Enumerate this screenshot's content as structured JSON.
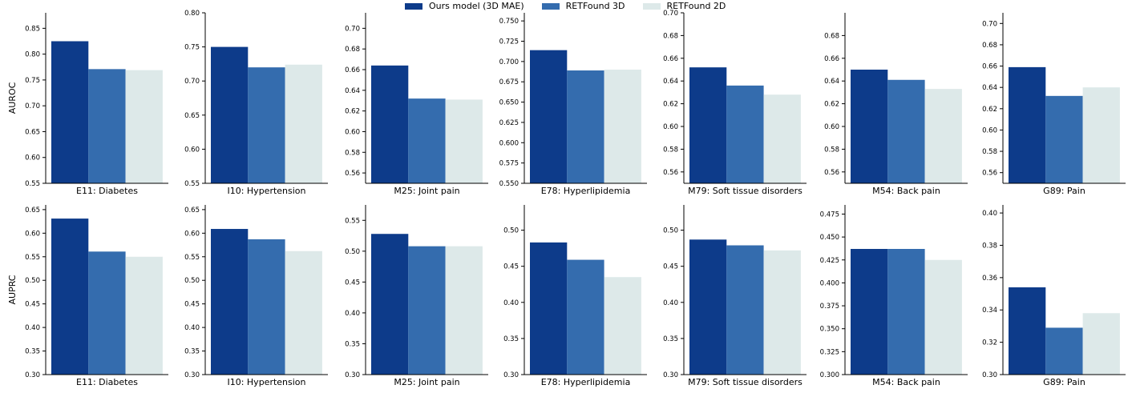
{
  "legend": [
    {
      "label": "Ours model (3D MAE)",
      "color": "#0d3b8a"
    },
    {
      "label": "RETFound 3D",
      "color": "#346cae"
    },
    {
      "label": "RETFound 2D",
      "color": "#dde9e9"
    }
  ],
  "chart_data": [
    {
      "type": "bar",
      "row_label": "AUROC",
      "xlabel": "E11: Diabetes",
      "ylim": [
        0.55,
        0.88
      ],
      "yticks": [
        "0.55",
        "0.60",
        "0.65",
        "0.70",
        "0.75",
        "0.80",
        "0.85"
      ],
      "series": [
        {
          "name": "Ours model (3D MAE)",
          "value": 0.825
        },
        {
          "name": "RETFound 3D",
          "value": 0.771
        },
        {
          "name": "RETFound 2D",
          "value": 0.769
        }
      ]
    },
    {
      "type": "bar",
      "row_label": "",
      "xlabel": "I10: Hypertension",
      "ylim": [
        0.55,
        0.8
      ],
      "yticks": [
        "0.55",
        "0.60",
        "0.65",
        "0.70",
        "0.75",
        "0.80"
      ],
      "series": [
        {
          "name": "Ours model (3D MAE)",
          "value": 0.75
        },
        {
          "name": "RETFound 3D",
          "value": 0.72
        },
        {
          "name": "RETFound 2D",
          "value": 0.724
        }
      ]
    },
    {
      "type": "bar",
      "row_label": "",
      "xlabel": "M25: Joint pain",
      "ylim": [
        0.55,
        0.715
      ],
      "yticks": [
        "0.56",
        "0.58",
        "0.60",
        "0.62",
        "0.64",
        "0.66",
        "0.68",
        "0.70"
      ],
      "series": [
        {
          "name": "Ours model (3D MAE)",
          "value": 0.664
        },
        {
          "name": "RETFound 3D",
          "value": 0.632
        },
        {
          "name": "RETFound 2D",
          "value": 0.631
        }
      ]
    },
    {
      "type": "bar",
      "row_label": "",
      "xlabel": "E78: Hyperlipidemia",
      "ylim": [
        0.55,
        0.76
      ],
      "yticks": [
        "0.550",
        "0.575",
        "0.600",
        "0.625",
        "0.650",
        "0.675",
        "0.700",
        "0.725",
        "0.750"
      ],
      "series": [
        {
          "name": "Ours model (3D MAE)",
          "value": 0.714
        },
        {
          "name": "RETFound 3D",
          "value": 0.689
        },
        {
          "name": "RETFound 2D",
          "value": 0.69
        }
      ]
    },
    {
      "type": "bar",
      "row_label": "",
      "xlabel": "M79: Soft tissue disorders",
      "ylim": [
        0.55,
        0.7
      ],
      "yticks": [
        "0.56",
        "0.58",
        "0.60",
        "0.62",
        "0.64",
        "0.66",
        "0.68",
        "0.70"
      ],
      "series": [
        {
          "name": "Ours model (3D MAE)",
          "value": 0.652
        },
        {
          "name": "RETFound 3D",
          "value": 0.636
        },
        {
          "name": "RETFound 2D",
          "value": 0.628
        }
      ]
    },
    {
      "type": "bar",
      "row_label": "",
      "xlabel": "M54: Back pain",
      "ylim": [
        0.55,
        0.7
      ],
      "yticks": [
        "0.56",
        "0.58",
        "0.60",
        "0.62",
        "0.64",
        "0.66",
        "0.68"
      ],
      "series": [
        {
          "name": "Ours model (3D MAE)",
          "value": 0.65
        },
        {
          "name": "RETFound 3D",
          "value": 0.641
        },
        {
          "name": "RETFound 2D",
          "value": 0.633
        }
      ]
    },
    {
      "type": "bar",
      "row_label": "",
      "xlabel": "G89: Pain",
      "ylim": [
        0.55,
        0.71
      ],
      "yticks": [
        "0.56",
        "0.58",
        "0.60",
        "0.62",
        "0.64",
        "0.66",
        "0.68",
        "0.70"
      ],
      "series": [
        {
          "name": "Ours model (3D MAE)",
          "value": 0.659
        },
        {
          "name": "RETFound 3D",
          "value": 0.632
        },
        {
          "name": "RETFound 2D",
          "value": 0.64
        }
      ]
    },
    {
      "type": "bar",
      "row_label": "AUPRC",
      "xlabel": "E11: Diabetes",
      "ylim": [
        0.3,
        0.66
      ],
      "yticks": [
        "0.30",
        "0.35",
        "0.40",
        "0.45",
        "0.50",
        "0.55",
        "0.60",
        "0.65"
      ],
      "series": [
        {
          "name": "Ours model (3D MAE)",
          "value": 0.631
        },
        {
          "name": "RETFound 3D",
          "value": 0.561
        },
        {
          "name": "RETFound 2D",
          "value": 0.55
        }
      ]
    },
    {
      "type": "bar",
      "row_label": "",
      "xlabel": "I10: Hypertension",
      "ylim": [
        0.3,
        0.66
      ],
      "yticks": [
        "0.30",
        "0.35",
        "0.40",
        "0.45",
        "0.50",
        "0.55",
        "0.60",
        "0.65"
      ],
      "series": [
        {
          "name": "Ours model (3D MAE)",
          "value": 0.609
        },
        {
          "name": "RETFound 3D",
          "value": 0.587
        },
        {
          "name": "RETFound 2D",
          "value": 0.562
        }
      ]
    },
    {
      "type": "bar",
      "row_label": "",
      "xlabel": "M25: Joint pain",
      "ylim": [
        0.3,
        0.575
      ],
      "yticks": [
        "0.30",
        "0.35",
        "0.40",
        "0.45",
        "0.50",
        "0.55"
      ],
      "series": [
        {
          "name": "Ours model (3D MAE)",
          "value": 0.528
        },
        {
          "name": "RETFound 3D",
          "value": 0.508
        },
        {
          "name": "RETFound 2D",
          "value": 0.508
        }
      ]
    },
    {
      "type": "bar",
      "row_label": "",
      "xlabel": "E78: Hyperlipidemia",
      "ylim": [
        0.3,
        0.535
      ],
      "yticks": [
        "0.30",
        "0.35",
        "0.40",
        "0.45",
        "0.50"
      ],
      "series": [
        {
          "name": "Ours model (3D MAE)",
          "value": 0.483
        },
        {
          "name": "RETFound 3D",
          "value": 0.459
        },
        {
          "name": "RETFound 2D",
          "value": 0.435
        }
      ]
    },
    {
      "type": "bar",
      "row_label": "",
      "xlabel": "M79: Soft tissue disorders",
      "ylim": [
        0.3,
        0.535
      ],
      "yticks": [
        "0.30",
        "0.35",
        "0.40",
        "0.45",
        "0.50"
      ],
      "series": [
        {
          "name": "Ours model (3D MAE)",
          "value": 0.487
        },
        {
          "name": "RETFound 3D",
          "value": 0.479
        },
        {
          "name": "RETFound 2D",
          "value": 0.472
        }
      ]
    },
    {
      "type": "bar",
      "row_label": "",
      "xlabel": "M54: Back pain",
      "ylim": [
        0.3,
        0.485
      ],
      "yticks": [
        "0.300",
        "0.325",
        "0.350",
        "0.375",
        "0.400",
        "0.425",
        "0.450",
        "0.475"
      ],
      "series": [
        {
          "name": "Ours model (3D MAE)",
          "value": 0.437
        },
        {
          "name": "RETFound 3D",
          "value": 0.437
        },
        {
          "name": "RETFound 2D",
          "value": 0.425
        }
      ]
    },
    {
      "type": "bar",
      "row_label": "",
      "xlabel": "G89: Pain",
      "ylim": [
        0.3,
        0.405
      ],
      "yticks": [
        "0.30",
        "0.32",
        "0.34",
        "0.36",
        "0.38",
        "0.40"
      ],
      "series": [
        {
          "name": "Ours model (3D MAE)",
          "value": 0.354
        },
        {
          "name": "RETFound 3D",
          "value": 0.329
        },
        {
          "name": "RETFound 2D",
          "value": 0.338
        }
      ]
    }
  ]
}
